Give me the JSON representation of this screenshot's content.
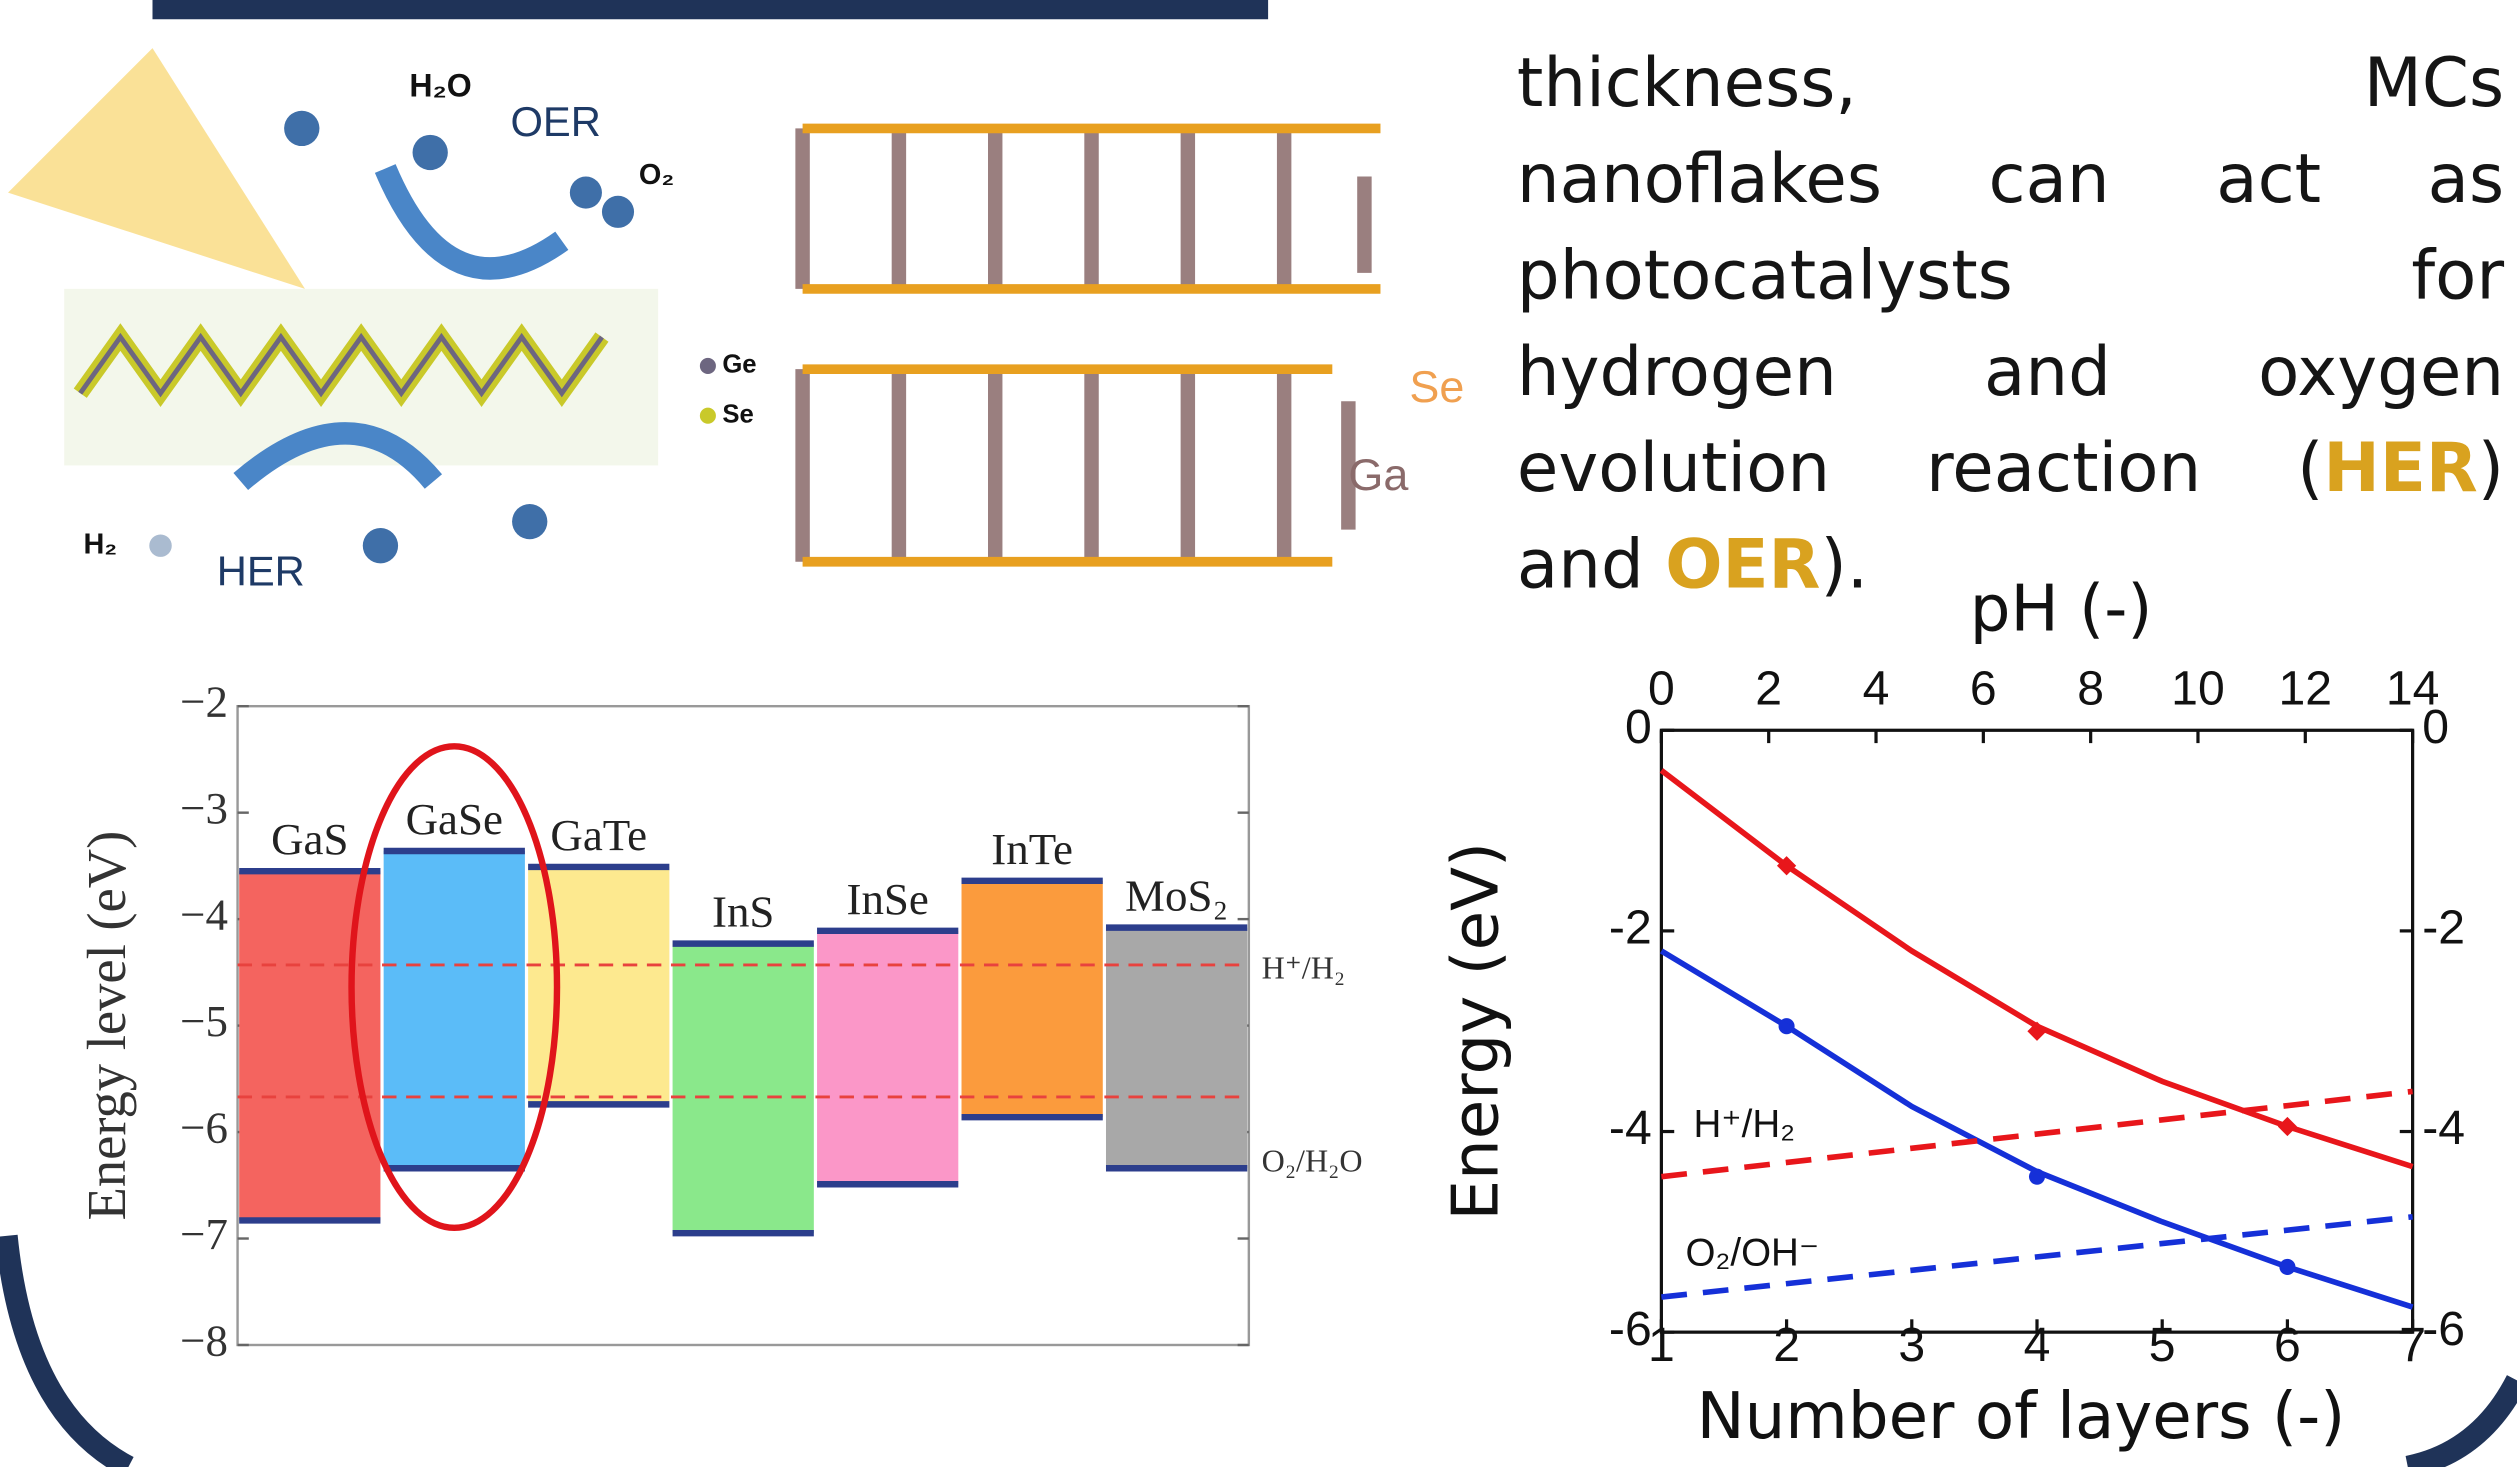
{
  "text": {
    "paragraph": [
      [
        {
          "text": "thickness, MCs"
        }
      ],
      [
        {
          "text": "nanoflakes can act as"
        }
      ],
      [
        {
          "text": "photocatalysts for"
        }
      ],
      [
        {
          "text": "hydrogen and oxygen"
        }
      ],
      [
        {
          "text": "evolution reaction ("
        },
        {
          "text": "HER",
          "highlight": true
        },
        {
          "text": ")"
        }
      ],
      [
        {
          "text": "and "
        },
        {
          "text": "OER",
          "highlight": true
        },
        {
          "text": ")."
        }
      ]
    ]
  },
  "illustration": {
    "left": [
      "H₂O",
      "OER",
      "O₂",
      "Ge",
      "Se",
      "H₂",
      "HER"
    ],
    "right": [
      "Se",
      "Ga"
    ]
  },
  "chart_data": [
    {
      "type": "floating_bar",
      "ylabel": "Energy level (eV)",
      "categories": [
        "GaS",
        "GaSe",
        "GaTe",
        "InS",
        "InSe",
        "InTe",
        "MoS₂"
      ],
      "colors": [
        "#f4645f",
        "#5bbcf8",
        "#fde98f",
        "#8ae88b",
        "#fb97c8",
        "#fb9b3d",
        "#a8a8a8"
      ],
      "series": [
        {
          "color": "#2c3e8c",
          "values": [
            -3.55,
            -3.36,
            -3.51,
            -4.23,
            -4.11,
            -3.64,
            -4.08
          ]
        },
        {
          "color": "#2c3e8c",
          "values": [
            -6.83,
            -6.34,
            -5.74,
            -6.95,
            -6.49,
            -5.86,
            -6.34
          ]
        }
      ],
      "reference_lines": [
        {
          "value": -4.43,
          "label": "H⁺/H₂"
        },
        {
          "value": -5.67,
          "label": "O₂/H₂O"
        }
      ],
      "reference_color": "#e8423e",
      "ylim": [
        -8,
        -2
      ],
      "yticks": [
        {
          "value": -2,
          "label": "−2"
        },
        {
          "value": -3,
          "label": "−3"
        },
        {
          "value": -4,
          "label": "−4"
        },
        {
          "value": -5,
          "label": "−5"
        },
        {
          "value": -6,
          "label": "−6"
        },
        {
          "value": -7,
          "label": "−7"
        },
        {
          "value": -8,
          "label": "−8"
        }
      ]
    },
    {
      "type": "line",
      "xlabel": "Number of layers (-)",
      "x2label": "pH (-)",
      "ylabel": "Energy (eV)",
      "xlim": [
        1,
        7
      ],
      "xticks": [
        1,
        2,
        3,
        4,
        5,
        6,
        7
      ],
      "x2lim": [
        0,
        14
      ],
      "x2ticks": [
        0,
        2,
        4,
        6,
        8,
        10,
        12,
        14
      ],
      "ylim": [
        -6,
        0
      ],
      "yticks": [
        0,
        -2,
        -4,
        -6
      ],
      "y2lim": [
        -6,
        0
      ],
      "y2ticks": [
        0,
        -2,
        -4,
        -6
      ],
      "series": [
        {
          "color": "#e8161b",
          "style": "markers",
          "marker": "diamond",
          "x": [
            2,
            4,
            6
          ],
          "values": [
            -1.35,
            -3.0,
            -3.95
          ]
        },
        {
          "color": "#e8161b",
          "style": "solid",
          "x": [
            1,
            2,
            3,
            4,
            5,
            6,
            7
          ],
          "values": [
            -0.4,
            -1.35,
            -2.2,
            -2.95,
            -3.5,
            -3.95,
            -4.35
          ]
        },
        {
          "color": "#1530d8",
          "style": "markers",
          "marker": "circle",
          "x": [
            2,
            4,
            6
          ],
          "values": [
            -2.95,
            -4.45,
            -5.35
          ]
        },
        {
          "color": "#1530d8",
          "style": "solid",
          "x": [
            1,
            2,
            3,
            4,
            5,
            6,
            7
          ],
          "values": [
            -2.2,
            -2.95,
            -3.75,
            -4.4,
            -4.9,
            -5.35,
            -5.75
          ]
        },
        {
          "color": "#e8161b",
          "style": "dashed",
          "x": [
            1,
            7
          ],
          "values": [
            -4.45,
            -3.6
          ]
        },
        {
          "color": "#1530d8",
          "style": "dashed",
          "x": [
            1,
            7
          ],
          "values": [
            -5.65,
            -4.85
          ]
        }
      ],
      "annotations": [
        "H⁺/H₂",
        "O₂/OH⁻"
      ]
    }
  ]
}
